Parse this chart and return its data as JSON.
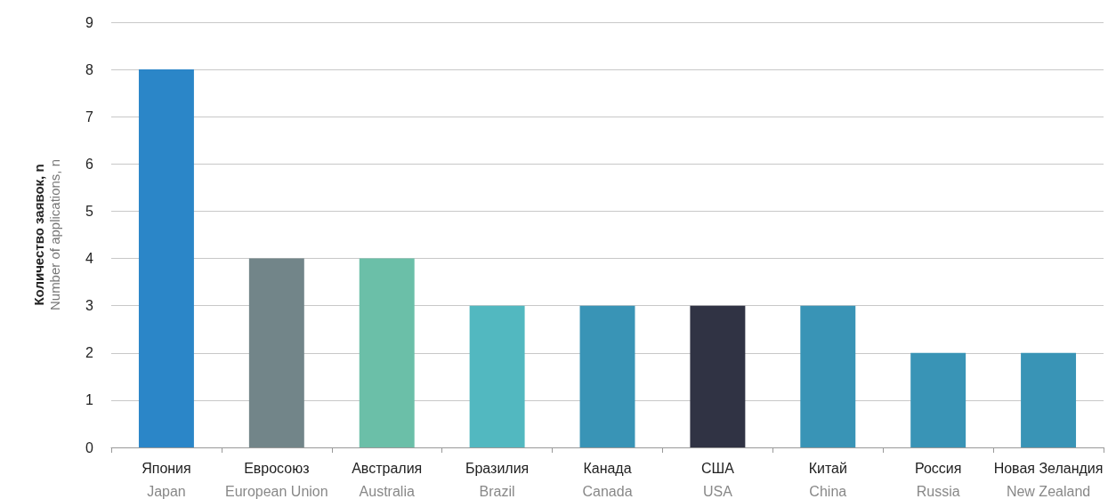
{
  "chart_data": {
    "type": "bar",
    "ylabel": "Количество заявок, n\nNumber of applications, n",
    "categories": [
      "Япония\nJapan",
      "Евросоюз\nEuropean Union",
      "Австралия\nAustralia",
      "Бразилия\nBrazil",
      "Канада\nCanada",
      "США\nUSA",
      "Китай\nChina",
      "Россия\nRussia",
      "Новая Зеландия\nNew Zealand"
    ],
    "values": [
      8,
      4,
      4,
      3,
      3,
      3,
      3,
      2,
      2
    ],
    "colors": [
      "#2b86c8",
      "#728589",
      "#6bbfa8",
      "#52b8c0",
      "#3994b6",
      "#303344",
      "#3994b6",
      "#3994b6",
      "#3994b6"
    ],
    "ylim": [
      0,
      9
    ],
    "yticks": [
      0,
      1,
      2,
      3,
      4,
      5,
      6,
      7,
      8,
      9
    ],
    "grid": "y"
  }
}
